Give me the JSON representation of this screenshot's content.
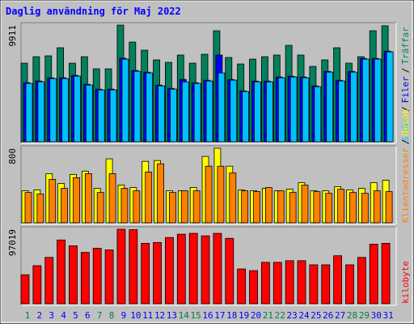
{
  "title": "Daglig användning för Maj 2022",
  "legend_separator": "/",
  "chart_data": [
    {
      "type": "bar",
      "ylim": [
        0,
        9911
      ],
      "yticks": [
        9911
      ],
      "series": [
        {
          "name": "Träffar",
          "color": "#00805c",
          "values": [
            6676,
            7227,
            7297,
            7985,
            6676,
            7227,
            6195,
            6195,
            9911,
            8466,
            7778,
            6952,
            6745,
            7365,
            6676,
            7433,
            9429,
            7158,
            6607,
            7020,
            7227,
            7365,
            8190,
            7365,
            6401,
            6952,
            7984,
            6676,
            7227,
            9429,
            9850
          ]
        },
        {
          "name": "Filer",
          "color": "#0000ff",
          "values": [
            5020,
            5160,
            5430,
            5440,
            5640,
            4880,
            4460,
            4470,
            7100,
            6050,
            5910,
            4810,
            4530,
            5300,
            5010,
            5220,
            7362,
            5290,
            4320,
            5150,
            5150,
            5500,
            5560,
            5500,
            4740,
            5980,
            5220,
            5980,
            7080,
            7080,
            7700
          ]
        },
        {
          "name": "Sidor",
          "color": "#00c0ff",
          "values": [
            4954,
            5091,
            5366,
            5366,
            5573,
            4816,
            4403,
            4403,
            7018,
            5986,
            5848,
            4747,
            4472,
            5091,
            4954,
            5160,
            5848,
            5229,
            4266,
            5091,
            5091,
            5435,
            5504,
            5435,
            4678,
            5917,
            5160,
            5917,
            7018,
            7018,
            7637
          ]
        }
      ]
    },
    {
      "type": "bar",
      "ylim": [
        0,
        800
      ],
      "yticks": [
        800
      ],
      "series": [
        {
          "name": "Besök",
          "color": "#ffff00",
          "values": [
            343,
            352,
            527,
            422,
            519,
            554,
            369,
            686,
            404,
            378,
            659,
            668,
            343,
            343,
            378,
            712,
            800,
            607,
            352,
            343,
            369,
            343,
            360,
            431,
            343,
            343,
            387,
            352,
            369,
            431,
            457
          ]
        },
        {
          "name": "Klientadresser",
          "color": "#ff8000",
          "values": [
            325,
            308,
            466,
            369,
            483,
            527,
            325,
            527,
            369,
            343,
            545,
            633,
            325,
            343,
            343,
            607,
            607,
            536,
            343,
            334,
            378,
            343,
            325,
            404,
            334,
            316,
            360,
            325,
            316,
            343,
            334
          ]
        }
      ]
    },
    {
      "type": "bar",
      "ylim": [
        0,
        97019
      ],
      "yticks": [
        97019
      ],
      "categories": [
        "1",
        "2",
        "3",
        "4",
        "5",
        "6",
        "7",
        "8",
        "9",
        "10",
        "11",
        "12",
        "13",
        "14",
        "15",
        "16",
        "17",
        "18",
        "19",
        "20",
        "21",
        "22",
        "23",
        "24",
        "25",
        "26",
        "27",
        "28",
        "29",
        "30",
        "31"
      ],
      "category_colors": [
        "#008040",
        "#0000ff",
        "#0000ff",
        "#0000ff",
        "#0000ff",
        "#0000ff",
        "#008040",
        "#008040",
        "#0000ff",
        "#0000ff",
        "#0000ff",
        "#0000ff",
        "#0000ff",
        "#008040",
        "#008040",
        "#0000ff",
        "#0000ff",
        "#0000ff",
        "#0000ff",
        "#0000ff",
        "#008040",
        "#008040",
        "#0000ff",
        "#0000ff",
        "#0000ff",
        "#0000ff",
        "#0000ff",
        "#008040",
        "#008040",
        "#0000ff",
        "#0000ff"
      ],
      "series": [
        {
          "name": "kilobyte",
          "color": "#ff0000",
          "values": [
            37730,
            49588,
            60368,
            83006,
            75460,
            66836,
            72226,
            70070,
            97019,
            96500,
            78694,
            79772,
            86240,
            90552,
            91630,
            88396,
            91630,
            85162,
            45276,
            43120,
            53900,
            53900,
            56056,
            56056,
            50666,
            50666,
            62524,
            50666,
            60368,
            77616,
            78694
          ]
        }
      ]
    }
  ]
}
